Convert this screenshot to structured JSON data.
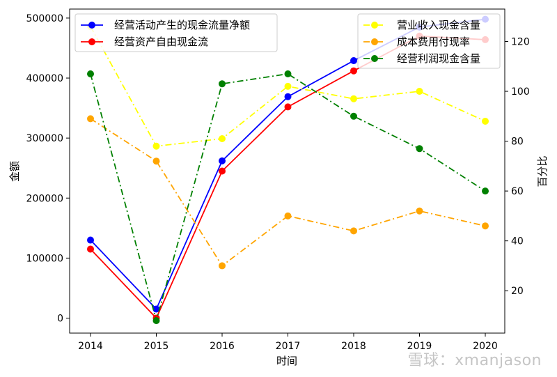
{
  "chart_data": {
    "type": "line",
    "x": [
      "2014",
      "2015",
      "2016",
      "2017",
      "2018",
      "2019",
      "2020"
    ],
    "xlabel": "时间",
    "ylabel_left": "金额",
    "ylabel_right": "百分比",
    "ylim_left": [
      -25000,
      515000
    ],
    "ylim_right": [
      3,
      133
    ],
    "yticks_left": [
      "0",
      "100000",
      "200000",
      "300000",
      "400000",
      "500000"
    ],
    "yticks_right": [
      "20",
      "40",
      "60",
      "80",
      "100",
      "120"
    ],
    "grid": false,
    "legend_left_placement": "top-left",
    "legend_right_placement": "top-right",
    "series_left": [
      {
        "name": "经营活动产生的现金流量净额",
        "color": "#0000ff",
        "style": "solid",
        "values": [
          130000,
          15000,
          262000,
          369000,
          429000,
          485000,
          498000
        ]
      },
      {
        "name": "经营资产自由现金流",
        "color": "#ff0000",
        "style": "solid",
        "values": [
          115000,
          0,
          245000,
          352000,
          412000,
          470000,
          464000
        ]
      }
    ],
    "series_right": [
      {
        "name": "营业收入现金含量",
        "color": "#ffff00",
        "style": "dashdot",
        "values": [
          126,
          78,
          81,
          102,
          97,
          100,
          88
        ]
      },
      {
        "name": "成本费用付现率",
        "color": "#ffa500",
        "style": "dashdot",
        "values": [
          89,
          72,
          30,
          50,
          44,
          52,
          46
        ]
      },
      {
        "name": "经营利润现金含量",
        "color": "#008000",
        "style": "dashdot",
        "values": [
          107,
          8,
          103,
          107,
          90,
          77,
          60
        ]
      }
    ]
  },
  "watermark": "雪球：xmanjason"
}
